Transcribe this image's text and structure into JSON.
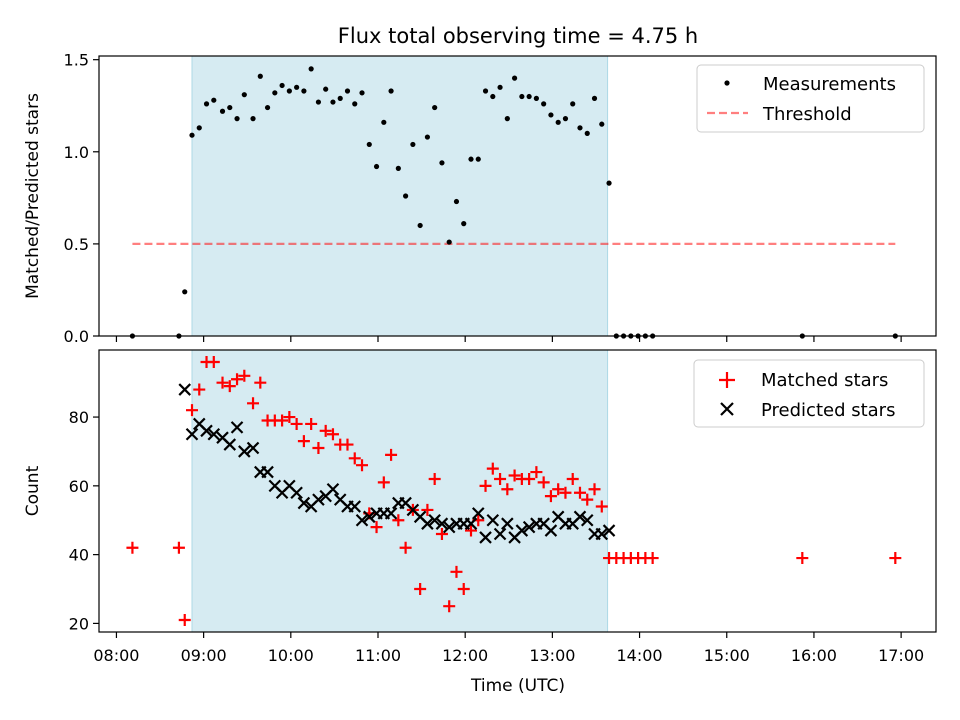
{
  "figure_title": "Flux total observing time = 4.75 h",
  "xlabel": "Time (UTC)",
  "x_ticks": [
    "08:00",
    "09:00",
    "10:00",
    "11:00",
    "12:00",
    "13:00",
    "14:00",
    "15:00",
    "16:00",
    "17:00"
  ],
  "colors": {
    "shade": "#add8e6",
    "measurements": "#000000",
    "threshold": "#ff0000",
    "matched": "#ff0000",
    "predicted": "#000000"
  },
  "chart_data": [
    {
      "type": "scatter",
      "ylabel": "Matched/Predicted stars",
      "xlim": [
        "07:48",
        "17:24"
      ],
      "ylim": [
        0,
        1.52
      ],
      "y_ticks": [
        "0.0",
        "0.5",
        "1.0",
        "1.5"
      ],
      "shaded_interval": [
        "08:52",
        "13:38"
      ],
      "legend_position": "top-right",
      "legend": [
        "Measurements",
        "Threshold"
      ],
      "threshold": {
        "value": 0.5,
        "x_range": [
          "08:11",
          "16:56"
        ]
      },
      "measurements": [
        {
          "t": "08:11",
          "v": 0.0
        },
        {
          "t": "08:43",
          "v": 0.0
        },
        {
          "t": "08:47",
          "v": 0.24
        },
        {
          "t": "08:52",
          "v": 1.09
        },
        {
          "t": "08:57",
          "v": 1.13
        },
        {
          "t": "09:02",
          "v": 1.26
        },
        {
          "t": "09:07",
          "v": 1.28
        },
        {
          "t": "09:13",
          "v": 1.22
        },
        {
          "t": "09:18",
          "v": 1.24
        },
        {
          "t": "09:23",
          "v": 1.18
        },
        {
          "t": "09:28",
          "v": 1.31
        },
        {
          "t": "09:34",
          "v": 1.18
        },
        {
          "t": "09:39",
          "v": 1.41
        },
        {
          "t": "09:44",
          "v": 1.24
        },
        {
          "t": "09:49",
          "v": 1.32
        },
        {
          "t": "09:54",
          "v": 1.36
        },
        {
          "t": "09:59",
          "v": 1.33
        },
        {
          "t": "10:04",
          "v": 1.35
        },
        {
          "t": "10:09",
          "v": 1.33
        },
        {
          "t": "10:14",
          "v": 1.45
        },
        {
          "t": "10:19",
          "v": 1.27
        },
        {
          "t": "10:24",
          "v": 1.34
        },
        {
          "t": "10:29",
          "v": 1.27
        },
        {
          "t": "10:34",
          "v": 1.29
        },
        {
          "t": "10:39",
          "v": 1.33
        },
        {
          "t": "10:44",
          "v": 1.26
        },
        {
          "t": "10:49",
          "v": 1.32
        },
        {
          "t": "10:54",
          "v": 1.04
        },
        {
          "t": "10:59",
          "v": 0.92
        },
        {
          "t": "11:04",
          "v": 1.16
        },
        {
          "t": "11:09",
          "v": 1.33
        },
        {
          "t": "11:14",
          "v": 0.91
        },
        {
          "t": "11:19",
          "v": 0.76
        },
        {
          "t": "11:24",
          "v": 1.04
        },
        {
          "t": "11:29",
          "v": 0.6
        },
        {
          "t": "11:34",
          "v": 1.08
        },
        {
          "t": "11:39",
          "v": 1.24
        },
        {
          "t": "11:44",
          "v": 0.94
        },
        {
          "t": "11:49",
          "v": 0.51
        },
        {
          "t": "11:54",
          "v": 0.73
        },
        {
          "t": "11:59",
          "v": 0.61
        },
        {
          "t": "12:04",
          "v": 0.96
        },
        {
          "t": "12:09",
          "v": 0.96
        },
        {
          "t": "12:14",
          "v": 1.33
        },
        {
          "t": "12:19",
          "v": 1.3
        },
        {
          "t": "12:24",
          "v": 1.35
        },
        {
          "t": "12:29",
          "v": 1.18
        },
        {
          "t": "12:34",
          "v": 1.4
        },
        {
          "t": "12:39",
          "v": 1.3
        },
        {
          "t": "12:44",
          "v": 1.3
        },
        {
          "t": "12:49",
          "v": 1.29
        },
        {
          "t": "12:54",
          "v": 1.26
        },
        {
          "t": "12:59",
          "v": 1.2
        },
        {
          "t": "13:04",
          "v": 1.16
        },
        {
          "t": "13:09",
          "v": 1.18
        },
        {
          "t": "13:14",
          "v": 1.26
        },
        {
          "t": "13:19",
          "v": 1.13
        },
        {
          "t": "13:24",
          "v": 1.1
        },
        {
          "t": "13:29",
          "v": 1.29
        },
        {
          "t": "13:34",
          "v": 1.15
        },
        {
          "t": "13:39",
          "v": 0.83
        },
        {
          "t": "13:44",
          "v": 0.0
        },
        {
          "t": "13:49",
          "v": 0.0
        },
        {
          "t": "13:54",
          "v": 0.0
        },
        {
          "t": "13:59",
          "v": 0.0
        },
        {
          "t": "14:04",
          "v": 0.0
        },
        {
          "t": "14:09",
          "v": 0.0
        },
        {
          "t": "15:52",
          "v": 0.0
        },
        {
          "t": "16:56",
          "v": 0.0
        }
      ]
    },
    {
      "type": "scatter",
      "ylabel": "Count",
      "xlim": [
        "07:48",
        "17:24"
      ],
      "ylim": [
        17.5,
        99.5
      ],
      "y_ticks": [
        "20",
        "40",
        "60",
        "80"
      ],
      "shaded_interval": [
        "08:52",
        "13:38"
      ],
      "legend_position": "top-right",
      "legend": [
        "Matched stars",
        "Predicted stars"
      ],
      "matched": [
        {
          "t": "08:11",
          "v": 42
        },
        {
          "t": "08:43",
          "v": 42
        },
        {
          "t": "08:47",
          "v": 21
        },
        {
          "t": "08:52",
          "v": 82
        },
        {
          "t": "08:57",
          "v": 88
        },
        {
          "t": "09:02",
          "v": 96
        },
        {
          "t": "09:07",
          "v": 96
        },
        {
          "t": "09:13",
          "v": 90
        },
        {
          "t": "09:18",
          "v": 89
        },
        {
          "t": "09:23",
          "v": 91
        },
        {
          "t": "09:28",
          "v": 92
        },
        {
          "t": "09:34",
          "v": 84
        },
        {
          "t": "09:39",
          "v": 90
        },
        {
          "t": "09:44",
          "v": 79
        },
        {
          "t": "09:49",
          "v": 79
        },
        {
          "t": "09:54",
          "v": 79
        },
        {
          "t": "09:59",
          "v": 80
        },
        {
          "t": "10:04",
          "v": 78
        },
        {
          "t": "10:09",
          "v": 73
        },
        {
          "t": "10:14",
          "v": 78
        },
        {
          "t": "10:19",
          "v": 71
        },
        {
          "t": "10:24",
          "v": 76
        },
        {
          "t": "10:29",
          "v": 75
        },
        {
          "t": "10:34",
          "v": 72
        },
        {
          "t": "10:39",
          "v": 72
        },
        {
          "t": "10:44",
          "v": 68
        },
        {
          "t": "10:49",
          "v": 66
        },
        {
          "t": "10:54",
          "v": 52
        },
        {
          "t": "10:59",
          "v": 48
        },
        {
          "t": "11:04",
          "v": 61
        },
        {
          "t": "11:09",
          "v": 69
        },
        {
          "t": "11:14",
          "v": 50
        },
        {
          "t": "11:19",
          "v": 42
        },
        {
          "t": "11:24",
          "v": 53
        },
        {
          "t": "11:29",
          "v": 30
        },
        {
          "t": "11:34",
          "v": 53
        },
        {
          "t": "11:39",
          "v": 62
        },
        {
          "t": "11:44",
          "v": 46
        },
        {
          "t": "11:49",
          "v": 25
        },
        {
          "t": "11:54",
          "v": 35
        },
        {
          "t": "11:59",
          "v": 30
        },
        {
          "t": "12:04",
          "v": 47
        },
        {
          "t": "12:09",
          "v": 50
        },
        {
          "t": "12:14",
          "v": 60
        },
        {
          "t": "12:19",
          "v": 65
        },
        {
          "t": "12:24",
          "v": 62
        },
        {
          "t": "12:29",
          "v": 59
        },
        {
          "t": "12:34",
          "v": 63
        },
        {
          "t": "12:39",
          "v": 62
        },
        {
          "t": "12:44",
          "v": 62
        },
        {
          "t": "12:49",
          "v": 64
        },
        {
          "t": "12:54",
          "v": 61
        },
        {
          "t": "12:59",
          "v": 57
        },
        {
          "t": "13:04",
          "v": 59
        },
        {
          "t": "13:09",
          "v": 58
        },
        {
          "t": "13:14",
          "v": 62
        },
        {
          "t": "13:19",
          "v": 58
        },
        {
          "t": "13:24",
          "v": 56
        },
        {
          "t": "13:29",
          "v": 59
        },
        {
          "t": "13:34",
          "v": 54
        },
        {
          "t": "13:39",
          "v": 39
        },
        {
          "t": "13:44",
          "v": 39
        },
        {
          "t": "13:49",
          "v": 39
        },
        {
          "t": "13:54",
          "v": 39
        },
        {
          "t": "13:59",
          "v": 39
        },
        {
          "t": "14:04",
          "v": 39
        },
        {
          "t": "14:09",
          "v": 39
        },
        {
          "t": "15:52",
          "v": 39
        },
        {
          "t": "16:56",
          "v": 39
        }
      ],
      "predicted": [
        {
          "t": "08:47",
          "v": 88
        },
        {
          "t": "08:52",
          "v": 75
        },
        {
          "t": "08:57",
          "v": 78
        },
        {
          "t": "09:02",
          "v": 76
        },
        {
          "t": "09:07",
          "v": 75
        },
        {
          "t": "09:13",
          "v": 74
        },
        {
          "t": "09:18",
          "v": 72
        },
        {
          "t": "09:23",
          "v": 77
        },
        {
          "t": "09:28",
          "v": 70
        },
        {
          "t": "09:34",
          "v": 71
        },
        {
          "t": "09:39",
          "v": 64
        },
        {
          "t": "09:44",
          "v": 64
        },
        {
          "t": "09:49",
          "v": 60
        },
        {
          "t": "09:54",
          "v": 58
        },
        {
          "t": "09:59",
          "v": 60
        },
        {
          "t": "10:04",
          "v": 58
        },
        {
          "t": "10:09",
          "v": 55
        },
        {
          "t": "10:14",
          "v": 54
        },
        {
          "t": "10:19",
          "v": 56
        },
        {
          "t": "10:24",
          "v": 57
        },
        {
          "t": "10:29",
          "v": 59
        },
        {
          "t": "10:34",
          "v": 56
        },
        {
          "t": "10:39",
          "v": 54
        },
        {
          "t": "10:44",
          "v": 54
        },
        {
          "t": "10:49",
          "v": 50
        },
        {
          "t": "10:54",
          "v": 51
        },
        {
          "t": "10:59",
          "v": 52
        },
        {
          "t": "11:04",
          "v": 52
        },
        {
          "t": "11:09",
          "v": 52
        },
        {
          "t": "11:14",
          "v": 55
        },
        {
          "t": "11:19",
          "v": 55
        },
        {
          "t": "11:24",
          "v": 53
        },
        {
          "t": "11:29",
          "v": 51
        },
        {
          "t": "11:34",
          "v": 49
        },
        {
          "t": "11:39",
          "v": 50
        },
        {
          "t": "11:44",
          "v": 49
        },
        {
          "t": "11:49",
          "v": 48
        },
        {
          "t": "11:54",
          "v": 49
        },
        {
          "t": "11:59",
          "v": 49
        },
        {
          "t": "12:04",
          "v": 49
        },
        {
          "t": "12:09",
          "v": 52
        },
        {
          "t": "12:14",
          "v": 45
        },
        {
          "t": "12:19",
          "v": 50
        },
        {
          "t": "12:24",
          "v": 46
        },
        {
          "t": "12:29",
          "v": 49
        },
        {
          "t": "12:34",
          "v": 45
        },
        {
          "t": "12:39",
          "v": 47
        },
        {
          "t": "12:44",
          "v": 48
        },
        {
          "t": "12:49",
          "v": 49
        },
        {
          "t": "12:54",
          "v": 49
        },
        {
          "t": "12:59",
          "v": 47
        },
        {
          "t": "13:04",
          "v": 51
        },
        {
          "t": "13:09",
          "v": 49
        },
        {
          "t": "13:14",
          "v": 49
        },
        {
          "t": "13:19",
          "v": 51
        },
        {
          "t": "13:24",
          "v": 50
        },
        {
          "t": "13:29",
          "v": 46
        },
        {
          "t": "13:34",
          "v": 46
        },
        {
          "t": "13:39",
          "v": 47
        }
      ]
    }
  ]
}
